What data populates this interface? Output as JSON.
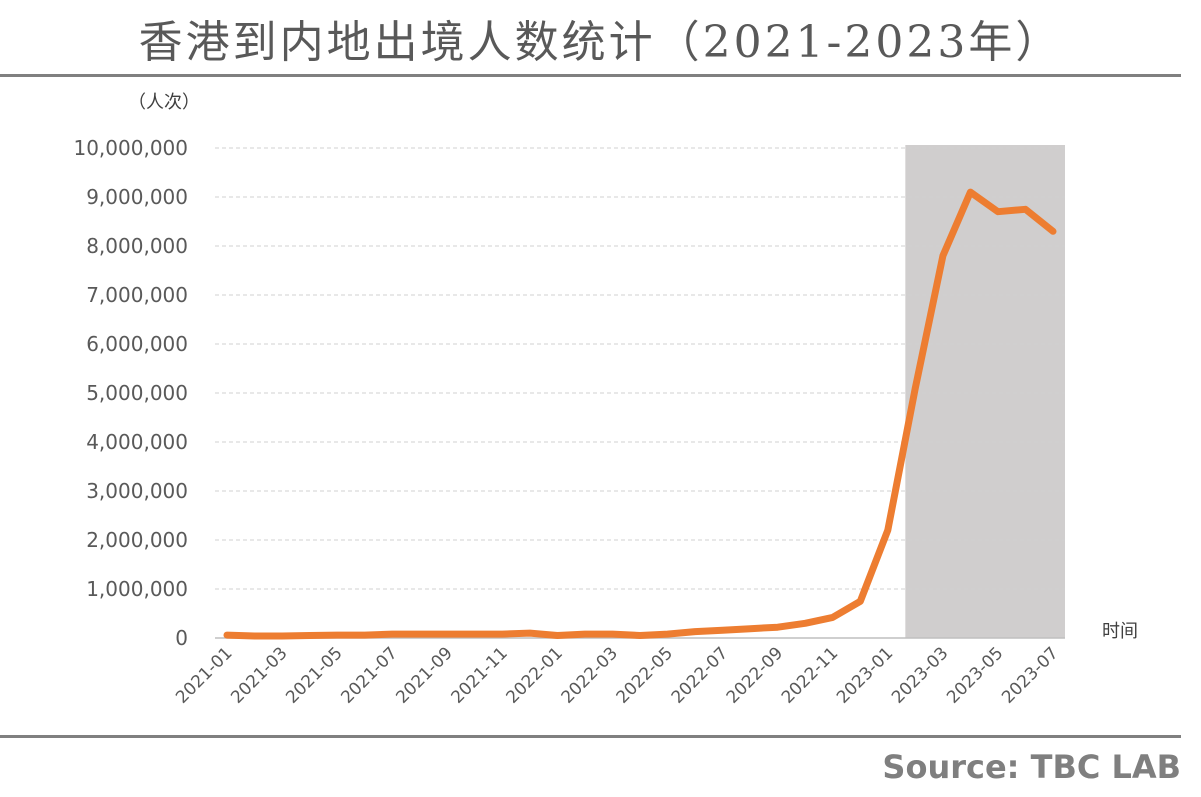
{
  "chart_data": {
    "type": "line",
    "title": "香港到内地出境人数统计（2021-2023年）",
    "ylabel": "（人次）",
    "xlabel": "时间",
    "ylim": [
      0,
      10000000
    ],
    "y_ticks": [
      "0",
      "1,000,000",
      "2,000,000",
      "3,000,000",
      "4,000,000",
      "5,000,000",
      "6,000,000",
      "7,000,000",
      "8,000,000",
      "9,000,000",
      "10,000,000"
    ],
    "x_tick_labels": [
      "2021-01",
      "2021-03",
      "2021-05",
      "2021-07",
      "2021-09",
      "2021-11",
      "2022-01",
      "2022-03",
      "2022-05",
      "2022-07",
      "2022-09",
      "2022-11",
      "2023-01",
      "2023-03",
      "2023-05",
      "2023-07"
    ],
    "grid": true,
    "highlight_range": [
      "2023-02",
      "2023-07"
    ],
    "series": [
      {
        "x": [
          "2021-01",
          "2021-02",
          "2021-03",
          "2021-04",
          "2021-05",
          "2021-06",
          "2021-07",
          "2021-08",
          "2021-09",
          "2021-10",
          "2021-11",
          "2021-12",
          "2022-01",
          "2022-02",
          "2022-03",
          "2022-04",
          "2022-05",
          "2022-06",
          "2022-07",
          "2022-08",
          "2022-09",
          "2022-10",
          "2022-11",
          "2022-12",
          "2023-01",
          "2023-02",
          "2023-03",
          "2023-04",
          "2023-05",
          "2023-06",
          "2023-07"
        ],
        "values": [
          60000,
          40000,
          40000,
          50000,
          60000,
          60000,
          80000,
          80000,
          80000,
          80000,
          80000,
          100000,
          50000,
          80000,
          80000,
          50000,
          80000,
          130000,
          160000,
          190000,
          220000,
          300000,
          420000,
          750000,
          2200000,
          5100000,
          7800000,
          9100000,
          8700000,
          8750000,
          8300000
        ],
        "color": "#ed7d31"
      }
    ],
    "highlight_color": "#d0cece",
    "source": "Source: TBC LAB"
  }
}
